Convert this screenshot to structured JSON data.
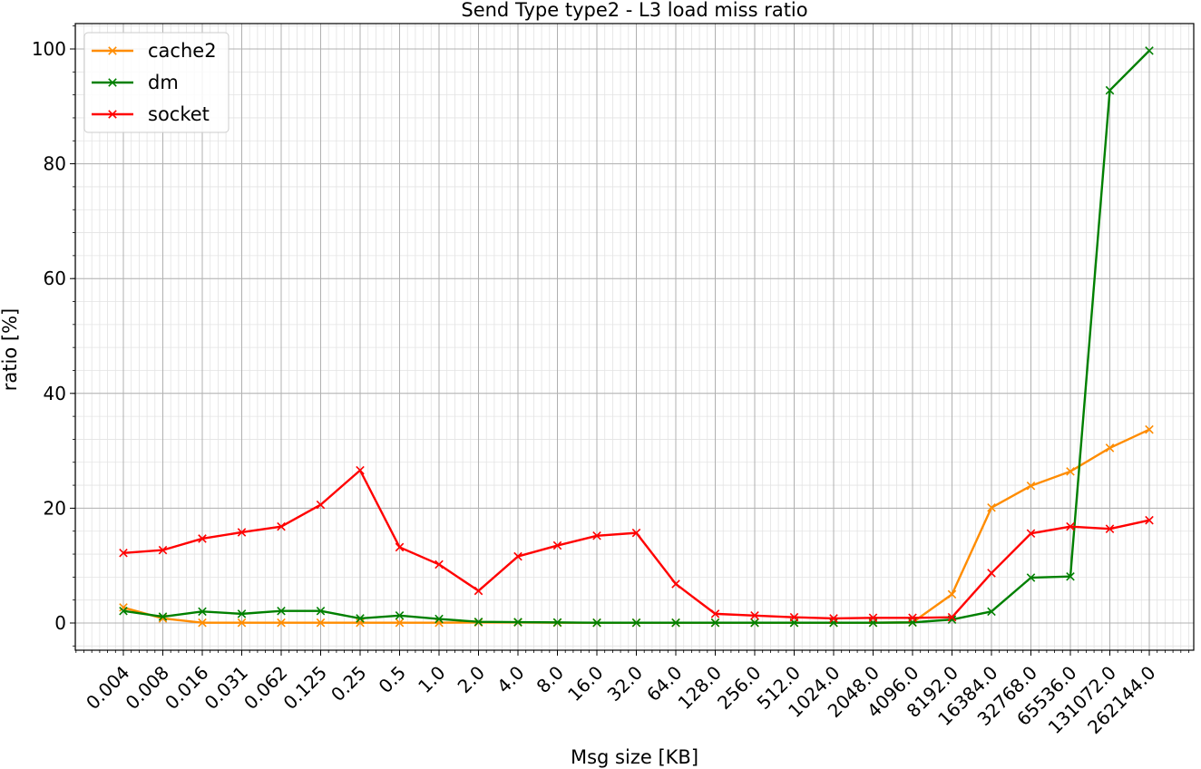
{
  "chart_data": {
    "type": "line",
    "title": "Send Type type2 - L3 load miss ratio",
    "xlabel": "Msg size [KB]",
    "ylabel": "ratio [%]",
    "categories": [
      "0.004",
      "0.008",
      "0.016",
      "0.031",
      "0.062",
      "0.125",
      "0.25",
      "0.5",
      "1.0",
      "2.0",
      "4.0",
      "8.0",
      "16.0",
      "32.0",
      "64.0",
      "128.0",
      "256.0",
      "512.0",
      "1024.0",
      "2048.0",
      "4096.0",
      "8192.0",
      "16384.0",
      "32768.0",
      "65536.0",
      "131072.0",
      "262144.0"
    ],
    "yticks": [
      "0",
      "20",
      "40",
      "60",
      "80",
      "100"
    ],
    "ylim": [
      -5,
      105
    ],
    "grid": true,
    "legend_position": "top-left",
    "series": [
      {
        "name": "cache2",
        "color": "#ff8c00",
        "values": [
          2.7,
          0.8,
          0.05,
          0.05,
          0.05,
          0.05,
          0.05,
          0.05,
          0.05,
          0.1,
          0.1,
          0.05,
          0.05,
          0.05,
          0.05,
          0.05,
          0.05,
          0.05,
          0.05,
          0.05,
          0.1,
          5.0,
          20.1,
          23.9,
          26.4,
          30.5,
          33.7
        ]
      },
      {
        "name": "dm",
        "color": "#008000",
        "values": [
          2.1,
          1.1,
          2.0,
          1.6,
          2.1,
          2.1,
          0.8,
          1.3,
          0.7,
          0.2,
          0.15,
          0.1,
          0.05,
          0.05,
          0.05,
          0.05,
          0.05,
          0.05,
          0.05,
          0.05,
          0.1,
          0.6,
          2.0,
          7.9,
          8.1,
          92.8,
          99.7
        ]
      },
      {
        "name": "socket",
        "color": "#ff0000",
        "values": [
          12.2,
          12.7,
          14.7,
          15.8,
          16.8,
          20.6,
          26.6,
          13.2,
          10.2,
          5.6,
          11.6,
          13.5,
          15.2,
          15.7,
          6.8,
          1.6,
          1.3,
          1.0,
          0.8,
          0.9,
          0.9,
          1.0,
          8.7,
          15.6,
          16.8,
          16.4,
          17.9
        ]
      }
    ]
  }
}
